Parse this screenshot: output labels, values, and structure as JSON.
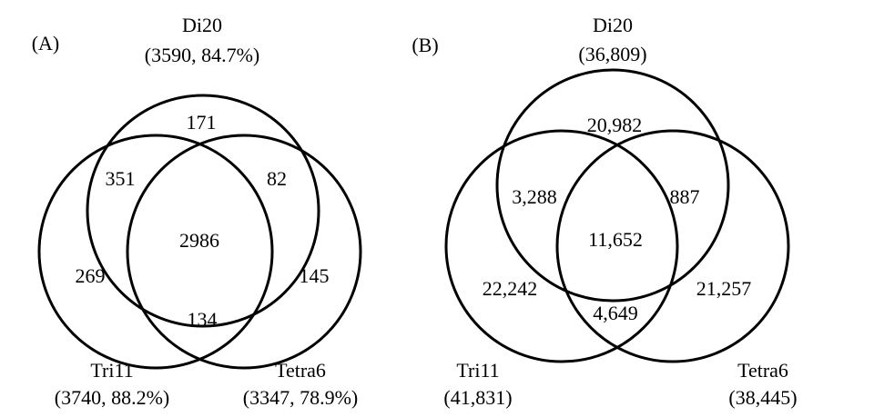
{
  "panels": [
    {
      "label": "(A)",
      "sets": [
        {
          "name": "Di20",
          "detail": "(3590, 84.7%)"
        },
        {
          "name": "Tri11",
          "detail": "(3740, 88.2%)"
        },
        {
          "name": "Tetra6",
          "detail": "(3347, 78.9%)"
        }
      ],
      "regions": [
        "171",
        "351",
        "82",
        "2986",
        "269",
        "145",
        "134"
      ]
    },
    {
      "label": "(B)",
      "sets": [
        {
          "name": "Di20",
          "detail": "(36,809)"
        },
        {
          "name": "Tri11",
          "detail": "(41,831)"
        },
        {
          "name": "Tetra6",
          "detail": "(38,445)"
        }
      ],
      "regions": [
        "20,982",
        "3,288",
        "887",
        "11,652",
        "22,242",
        "21,257",
        "4,649"
      ]
    }
  ]
}
